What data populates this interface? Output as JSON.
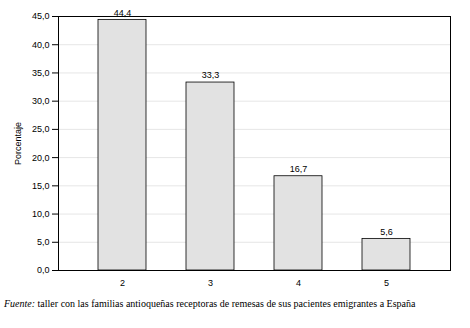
{
  "chart_data": {
    "type": "bar",
    "caption": "Fuente: taller con las familias antioqueñas receptoras de remesas de sus pacientes emigrantes a España",
    "y_label": "Porcentaje",
    "categories": [
      "2",
      "3",
      "4",
      "5"
    ],
    "values": [
      44.4,
      33.3,
      16.7,
      5.6
    ],
    "value_labels": [
      "44,4",
      "33,3",
      "16,7",
      "5,6"
    ],
    "data_labels": true,
    "color": "#e2e2e2",
    "ylim": [
      0,
      45
    ],
    "yticks": [
      {
        "value": 0,
        "label": "0,0"
      },
      {
        "value": 5,
        "label": "5,0"
      },
      {
        "value": 10,
        "label": "10,0"
      },
      {
        "value": 15,
        "label": "15,0"
      },
      {
        "value": 20,
        "label": "20,0"
      },
      {
        "value": 25,
        "label": "25,0"
      },
      {
        "value": 30,
        "label": "30,0"
      },
      {
        "value": 35,
        "label": "35,0"
      },
      {
        "value": 40,
        "label": "40,0"
      },
      {
        "value": 45,
        "label": "45,0"
      }
    ],
    "grid": true
  }
}
